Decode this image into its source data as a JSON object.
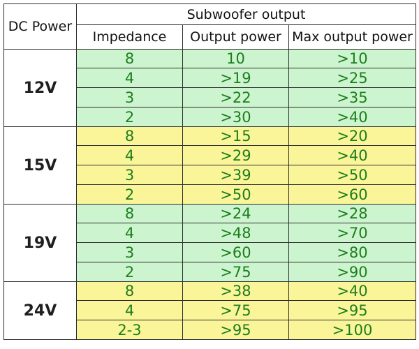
{
  "table": {
    "header": {
      "dc_power": "DC Power",
      "group_title": "Subwoofer output",
      "columns": [
        "Impedance",
        "Output power",
        "Max output power"
      ]
    },
    "groups": [
      {
        "voltage": "12V",
        "color": "#ccf5cf",
        "rows": [
          [
            "8",
            "10",
            ">10"
          ],
          [
            "4",
            ">19",
            ">25"
          ],
          [
            "3",
            ">22",
            ">35"
          ],
          [
            "2",
            ">30",
            ">40"
          ]
        ]
      },
      {
        "voltage": "15V",
        "color": "#fbf59a",
        "rows": [
          [
            "8",
            ">15",
            ">20"
          ],
          [
            "4",
            ">29",
            ">40"
          ],
          [
            "3",
            ">39",
            ">50"
          ],
          [
            "2",
            ">50",
            ">60"
          ]
        ]
      },
      {
        "voltage": "19V",
        "color": "#ccf5cf",
        "rows": [
          [
            "8",
            ">24",
            ">28"
          ],
          [
            "4",
            ">48",
            ">70"
          ],
          [
            "3",
            ">60",
            ">80"
          ],
          [
            "2",
            ">75",
            ">90"
          ]
        ]
      },
      {
        "voltage": "24V",
        "color": "#fbf59a",
        "rows": [
          [
            "8",
            ">38",
            ">40"
          ],
          [
            "4",
            ">75",
            ">95"
          ],
          [
            "2-3",
            ">95",
            ">100"
          ]
        ]
      }
    ],
    "text_color": "#1d7d1d"
  }
}
